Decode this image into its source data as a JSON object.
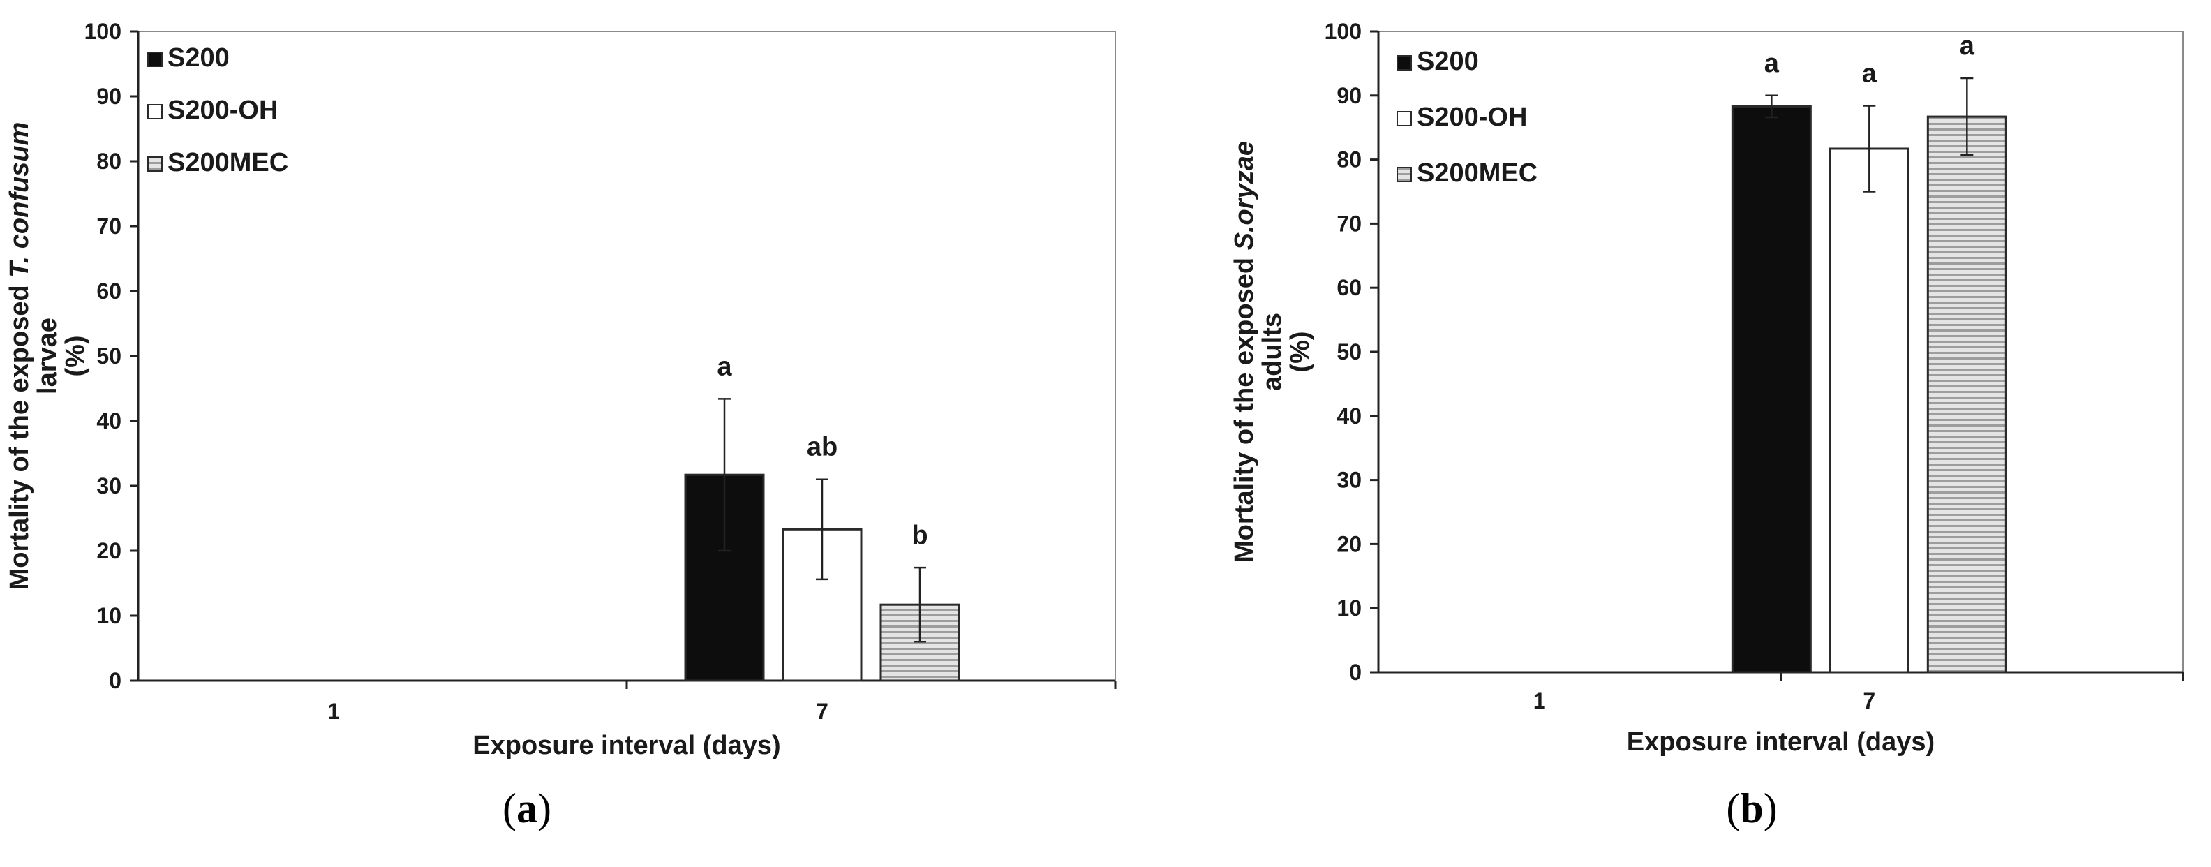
{
  "colors": {
    "S200": "#0d0d0d",
    "S200-OH": "#ffffff",
    "S200MEC": "#c4c4c4"
  },
  "chart_data": [
    {
      "id": "a",
      "type": "bar",
      "caption_open": "(",
      "caption_letter": "a",
      "caption_close": ")",
      "xlabel": "Exposure interval (days)",
      "ylabel_line1_pre": "Mortality of the exposed ",
      "ylabel_line1_italic": "T. confusum",
      "ylabel_line2": "larvae",
      "ylabel_line3": "(%)",
      "categories": [
        "1",
        "7"
      ],
      "ylim": [
        0,
        100
      ],
      "yticks": [
        0,
        10,
        20,
        30,
        40,
        50,
        60,
        70,
        80,
        90,
        100
      ],
      "grid": false,
      "legend": "top-left",
      "series": [
        {
          "name": "S200",
          "marker": "■",
          "pattern": "solid",
          "values": [
            0,
            31.7
          ],
          "errors": [
            0,
            11.7
          ],
          "sig": [
            "",
            "a"
          ]
        },
        {
          "name": "S200-OH",
          "marker": "□",
          "pattern": "empty",
          "values": [
            0,
            23.3
          ],
          "errors": [
            0,
            7.7
          ],
          "sig": [
            "",
            "ab"
          ]
        },
        {
          "name": "S200MEC",
          "marker": "▤",
          "pattern": "stripes",
          "values": [
            0,
            11.7
          ],
          "errors": [
            0,
            5.7
          ],
          "sig": [
            "",
            "b"
          ]
        }
      ]
    },
    {
      "id": "b",
      "type": "bar",
      "caption_open": "(",
      "caption_letter": "b",
      "caption_close": ")",
      "xlabel": "Exposure interval (days)",
      "ylabel_line1_pre": "Mortality of the exposed ",
      "ylabel_line1_italic": "S.oryzae",
      "ylabel_line2": "adults",
      "ylabel_line3": "(%)",
      "categories": [
        "1",
        "7"
      ],
      "ylim": [
        0,
        100
      ],
      "yticks": [
        0,
        10,
        20,
        30,
        40,
        50,
        60,
        70,
        80,
        90,
        100
      ],
      "grid": false,
      "legend": "top-left",
      "series": [
        {
          "name": "S200",
          "marker": "■",
          "pattern": "solid",
          "values": [
            0,
            88.3
          ],
          "errors": [
            0,
            1.7
          ],
          "sig": [
            "",
            "a"
          ]
        },
        {
          "name": "S200-OH",
          "marker": "□",
          "pattern": "empty",
          "values": [
            0,
            81.7
          ],
          "errors": [
            0,
            6.7
          ],
          "sig": [
            "",
            "a"
          ]
        },
        {
          "name": "S200MEC",
          "marker": "▤",
          "pattern": "stripes",
          "values": [
            0,
            86.7
          ],
          "errors": [
            0,
            6.0
          ],
          "sig": [
            "",
            "a"
          ]
        }
      ]
    }
  ]
}
